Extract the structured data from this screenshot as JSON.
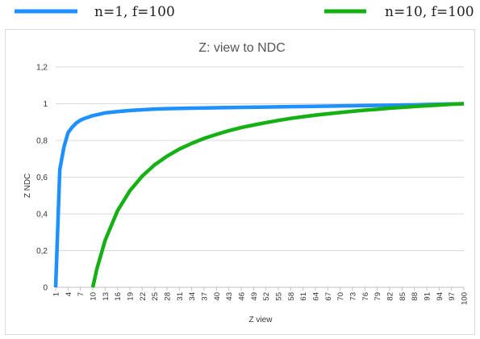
{
  "legend": [
    {
      "label": "n=1, f=100",
      "color": "#1E90FF"
    },
    {
      "label": "n=10, f=100",
      "color": "#14B014"
    }
  ],
  "chart_data": {
    "type": "line",
    "title": "Z: view to NDC",
    "xlabel": "Z view",
    "ylabel": "Z NDC",
    "xlim": [
      1,
      100
    ],
    "ylim": [
      0,
      1.2
    ],
    "y_ticks": [
      "0",
      "0,2",
      "0,4",
      "0,6",
      "0,8",
      "1",
      "1,2"
    ],
    "x_ticks": [
      "1",
      "4",
      "7",
      "10",
      "13",
      "16",
      "19",
      "22",
      "25",
      "28",
      "31",
      "34",
      "37",
      "40",
      "43",
      "46",
      "49",
      "52",
      "55",
      "58",
      "61",
      "64",
      "67",
      "70",
      "73",
      "76",
      "79",
      "82",
      "85",
      "88",
      "91",
      "94",
      "97",
      "100"
    ],
    "grid": "horizontal",
    "legend_position": "top",
    "series": [
      {
        "name": "n=1, f=100",
        "color": "#1E90FF",
        "points": [
          [
            1,
            0
          ],
          [
            2,
            0.641
          ],
          [
            3,
            0.763
          ],
          [
            4,
            0.842
          ],
          [
            5,
            0.872
          ],
          [
            6,
            0.895
          ],
          [
            7,
            0.91
          ],
          [
            8,
            0.92
          ],
          [
            10,
            0.935
          ],
          [
            13,
            0.95
          ],
          [
            16,
            0.957
          ],
          [
            19,
            0.963
          ],
          [
            22,
            0.967
          ],
          [
            25,
            0.971
          ],
          [
            28,
            0.973
          ],
          [
            34,
            0.976
          ],
          [
            40,
            0.978
          ],
          [
            46,
            0.98
          ],
          [
            52,
            0.982
          ],
          [
            58,
            0.984
          ],
          [
            64,
            0.986
          ],
          [
            70,
            0.988
          ],
          [
            76,
            0.99
          ],
          [
            82,
            0.992
          ],
          [
            88,
            0.994
          ],
          [
            94,
            0.997
          ],
          [
            100,
            1.0
          ]
        ]
      },
      {
        "name": "n=10, f=100",
        "color": "#14B014",
        "points": [
          [
            10,
            0
          ],
          [
            11,
            0.101
          ],
          [
            13,
            0.256
          ],
          [
            16,
            0.417
          ],
          [
            19,
            0.526
          ],
          [
            22,
            0.606
          ],
          [
            25,
            0.667
          ],
          [
            28,
            0.714
          ],
          [
            31,
            0.753
          ],
          [
            34,
            0.784
          ],
          [
            37,
            0.811
          ],
          [
            40,
            0.833
          ],
          [
            43,
            0.853
          ],
          [
            46,
            0.87
          ],
          [
            49,
            0.884
          ],
          [
            52,
            0.897
          ],
          [
            55,
            0.909
          ],
          [
            58,
            0.92
          ],
          [
            61,
            0.929
          ],
          [
            64,
            0.938
          ],
          [
            67,
            0.945
          ],
          [
            70,
            0.952
          ],
          [
            73,
            0.959
          ],
          [
            76,
            0.965
          ],
          [
            79,
            0.97
          ],
          [
            82,
            0.976
          ],
          [
            85,
            0.98
          ],
          [
            88,
            0.985
          ],
          [
            91,
            0.989
          ],
          [
            94,
            0.993
          ],
          [
            97,
            0.997
          ],
          [
            100,
            1.0
          ]
        ]
      }
    ]
  }
}
